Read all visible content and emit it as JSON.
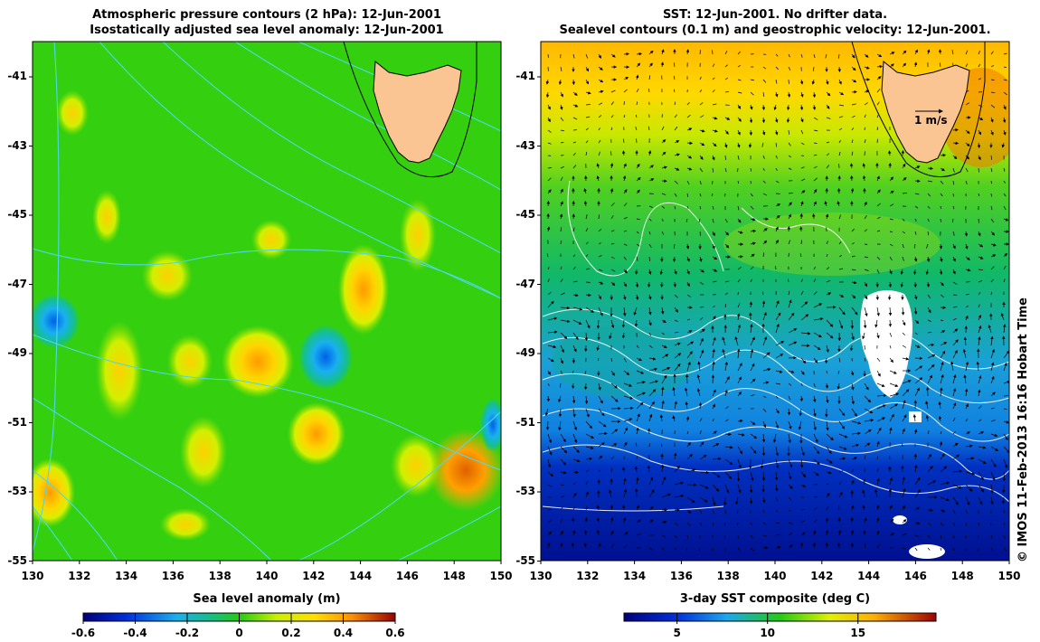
{
  "left_panel": {
    "title_line1": "Atmospheric pressure contours (2 hPa): 12-Jun-2001",
    "title_line2": "Isostatically adjusted sea level anomaly: 12-Jun-2001",
    "colorbar_title": "Sea level anomaly (m)",
    "colorbar_ticks": [
      "-0.6",
      "-0.4",
      "-0.2",
      "0",
      "0.2",
      "0.4",
      "0.6"
    ]
  },
  "right_panel": {
    "title_line1": "SST: 12-Jun-2001. No drifter data.",
    "title_line2": "Sealevel contours (0.1 m) and geostrophic velocity: 12-Jun-2001.",
    "colorbar_title": "3-day SST composite (deg C)",
    "colorbar_ticks": [
      "5",
      "10",
      "15"
    ],
    "scale_arrow_label": "1 m/s"
  },
  "axes": {
    "y_ticks": [
      "-41",
      "-43",
      "-45",
      "-47",
      "-49",
      "-51",
      "-53",
      "-55"
    ],
    "x_ticks": [
      "130",
      "132",
      "134",
      "136",
      "138",
      "140",
      "142",
      "144",
      "146",
      "148",
      "150"
    ]
  },
  "credit": "© IMOS 11-Feb-2013 16:16 Hobart Time",
  "colors": {
    "land": "#fbc493",
    "sla_background": "#22cc11",
    "missing_data": "#ffffff",
    "pressure_contour": "#4dd8e8"
  }
}
